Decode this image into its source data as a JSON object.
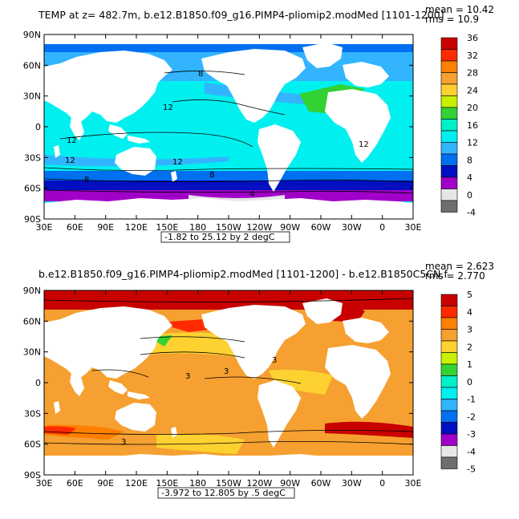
{
  "panels": [
    {
      "title": "TEMP  at z=  482.7m, b.e12.B1850.f09_g16.PIMP4-pliomip2.modMed  [1101-1200]",
      "mean_label": "mean  =  10.42",
      "rms_label": "rms  =  10.9",
      "range_label": "-1.82 to 25.12 by 2 degC",
      "colorbar_labels": [
        "36",
        "32",
        "28",
        "24",
        "20",
        "16",
        "12",
        "8",
        "4",
        "0",
        "-4"
      ],
      "colorbar_colors": [
        "#c80000",
        "#ff2a00",
        "#ff7f00",
        "#f5a030",
        "#fdd230",
        "#c8f000",
        "#32d232",
        "#00f0c8",
        "#00f0f0",
        "#32b4ff",
        "#0070f0",
        "#0010c0",
        "#a000c8",
        "#e6e6e6",
        "#6e6e6e"
      ],
      "contour_labels": [
        "12",
        "12",
        "12",
        "12",
        "12",
        "8",
        "8",
        "4",
        "8"
      ]
    },
    {
      "title": "b.e12.B1850.f09_g16.PIMP4-pliomip2.modMed  [1101-1200]  -  b.e12.B1850C5CN.f",
      "mean_label": "mean  =  2.623",
      "rms_label": "rms  =  2.770",
      "range_label": "-3.972 to 12.805 by .5 degC",
      "colorbar_labels": [
        "5",
        "4",
        "3",
        "2",
        "1",
        "0",
        "-1",
        "-2",
        "-3",
        "-4",
        "-5"
      ],
      "colorbar_colors": [
        "#c80000",
        "#ff2a00",
        "#ff7f00",
        "#f5a030",
        "#fdd230",
        "#c8f000",
        "#32d232",
        "#00f0c8",
        "#00f0f0",
        "#32b4ff",
        "#0070f0",
        "#0010c0",
        "#a000c8",
        "#e6e6e6",
        "#6e6e6e"
      ],
      "contour_labels": [
        "3",
        "3",
        "3",
        "3"
      ]
    }
  ],
  "lon_ticks": [
    "30E",
    "60E",
    "90E",
    "120E",
    "150E",
    "180",
    "150W",
    "120W",
    "90W",
    "60W",
    "30W",
    "0",
    "30E"
  ],
  "lat_ticks": [
    "90N",
    "60N",
    "30N",
    "0",
    "30S",
    "60S",
    "90S"
  ],
  "colors": {
    "land": "#ffffff",
    "frame": "#000000"
  }
}
